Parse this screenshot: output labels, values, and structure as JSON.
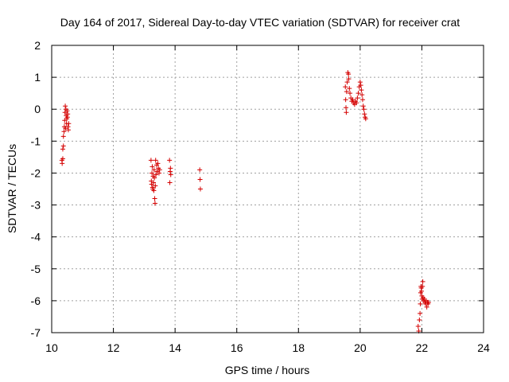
{
  "chart_data": {
    "type": "scatter",
    "title": "Day 164 of 2017, Sidereal Day-to-day VTEC variation (SDTVAR) for receiver crat",
    "xlabel": "GPS time / hours",
    "ylabel": "SDTVAR / TECUs",
    "xlim": [
      10,
      24
    ],
    "ylim": [
      -7,
      2
    ],
    "grid": true,
    "marker": "plus",
    "color": "#d40000",
    "x_ticks": [
      "10",
      "12",
      "14",
      "16",
      "18",
      "20",
      "22",
      "24"
    ],
    "y_ticks": [
      "2",
      "1",
      "0",
      "-1",
      "-2",
      "-3",
      "-4",
      "-5",
      "-6",
      "-7"
    ],
    "x_tick_values": [
      10,
      12,
      14,
      16,
      18,
      20,
      22,
      24
    ],
    "y_tick_values": [
      2,
      1,
      0,
      -1,
      -2,
      -3,
      -4,
      -5,
      -6,
      -7
    ],
    "series": [
      {
        "name": "SDTVAR",
        "points": [
          [
            10.33,
            -1.6
          ],
          [
            10.34,
            -1.7
          ],
          [
            10.36,
            -1.55
          ],
          [
            10.36,
            -1.25
          ],
          [
            10.38,
            -1.15
          ],
          [
            10.38,
            -0.85
          ],
          [
            10.4,
            -0.7
          ],
          [
            10.41,
            -0.55
          ],
          [
            10.42,
            -0.35
          ],
          [
            10.43,
            -0.1
          ],
          [
            10.44,
            0.1
          ],
          [
            10.45,
            -0.6
          ],
          [
            10.46,
            0.0
          ],
          [
            10.47,
            -0.2
          ],
          [
            10.48,
            -0.45
          ],
          [
            10.49,
            -0.3
          ],
          [
            10.5,
            -0.05
          ],
          [
            10.51,
            -0.25
          ],
          [
            10.52,
            -0.15
          ],
          [
            10.53,
            -0.55
          ],
          [
            10.54,
            -0.65
          ],
          [
            10.55,
            -0.45
          ],
          [
            13.22,
            -1.6
          ],
          [
            13.23,
            -2.25
          ],
          [
            13.24,
            -2.35
          ],
          [
            13.25,
            -2.0
          ],
          [
            13.26,
            -1.8
          ],
          [
            13.27,
            -2.45
          ],
          [
            13.28,
            -2.5
          ],
          [
            13.29,
            -2.1
          ],
          [
            13.3,
            -2.3
          ],
          [
            13.31,
            -2.55
          ],
          [
            13.32,
            -1.9
          ],
          [
            13.33,
            -2.15
          ],
          [
            13.34,
            -2.8
          ],
          [
            13.35,
            -2.95
          ],
          [
            13.36,
            -2.4
          ],
          [
            13.37,
            -1.6
          ],
          [
            13.38,
            -2.05
          ],
          [
            13.4,
            -1.75
          ],
          [
            13.42,
            -1.95
          ],
          [
            13.44,
            -1.7
          ],
          [
            13.46,
            -1.85
          ],
          [
            13.48,
            -2.0
          ],
          [
            13.5,
            -1.9
          ],
          [
            13.82,
            -1.6
          ],
          [
            13.83,
            -2.3
          ],
          [
            13.84,
            -1.95
          ],
          [
            13.85,
            -1.85
          ],
          [
            13.86,
            -2.05
          ],
          [
            14.8,
            -1.9
          ],
          [
            14.81,
            -2.2
          ],
          [
            14.82,
            -2.5
          ],
          [
            19.52,
            0.7
          ],
          [
            19.53,
            0.3
          ],
          [
            19.54,
            0.05
          ],
          [
            19.55,
            -0.1
          ],
          [
            19.56,
            0.55
          ],
          [
            19.58,
            0.85
          ],
          [
            19.6,
            1.15
          ],
          [
            19.62,
            1.1
          ],
          [
            19.63,
            0.95
          ],
          [
            19.65,
            0.65
          ],
          [
            19.67,
            0.5
          ],
          [
            19.7,
            0.35
          ],
          [
            19.73,
            0.25
          ],
          [
            19.76,
            0.3
          ],
          [
            19.79,
            0.2
          ],
          [
            19.82,
            0.15
          ],
          [
            19.85,
            0.25
          ],
          [
            19.88,
            0.2
          ],
          [
            19.91,
            0.35
          ],
          [
            19.94,
            0.5
          ],
          [
            19.97,
            0.7
          ],
          [
            20.0,
            0.85
          ],
          [
            20.02,
            0.75
          ],
          [
            20.04,
            0.6
          ],
          [
            20.06,
            0.45
          ],
          [
            20.08,
            0.3
          ],
          [
            20.1,
            0.1
          ],
          [
            20.12,
            0.0
          ],
          [
            20.14,
            -0.15
          ],
          [
            20.16,
            -0.25
          ],
          [
            20.18,
            -0.3
          ],
          [
            21.88,
            -6.8
          ],
          [
            21.9,
            -6.95
          ],
          [
            21.92,
            -6.6
          ],
          [
            21.94,
            -6.4
          ],
          [
            21.95,
            -6.1
          ],
          [
            21.96,
            -5.75
          ],
          [
            21.97,
            -5.55
          ],
          [
            21.98,
            -5.6
          ],
          [
            21.99,
            -5.7
          ],
          [
            22.0,
            -5.85
          ],
          [
            22.01,
            -5.95
          ],
          [
            22.02,
            -5.55
          ],
          [
            22.03,
            -5.4
          ],
          [
            22.04,
            -5.9
          ],
          [
            22.06,
            -6.0
          ],
          [
            22.08,
            -5.95
          ],
          [
            22.1,
            -6.05
          ],
          [
            22.12,
            -6.1
          ],
          [
            22.14,
            -6.0
          ],
          [
            22.16,
            -6.2
          ],
          [
            22.18,
            -6.05
          ],
          [
            22.2,
            -6.1
          ],
          [
            22.22,
            -6.05
          ]
        ]
      }
    ]
  }
}
